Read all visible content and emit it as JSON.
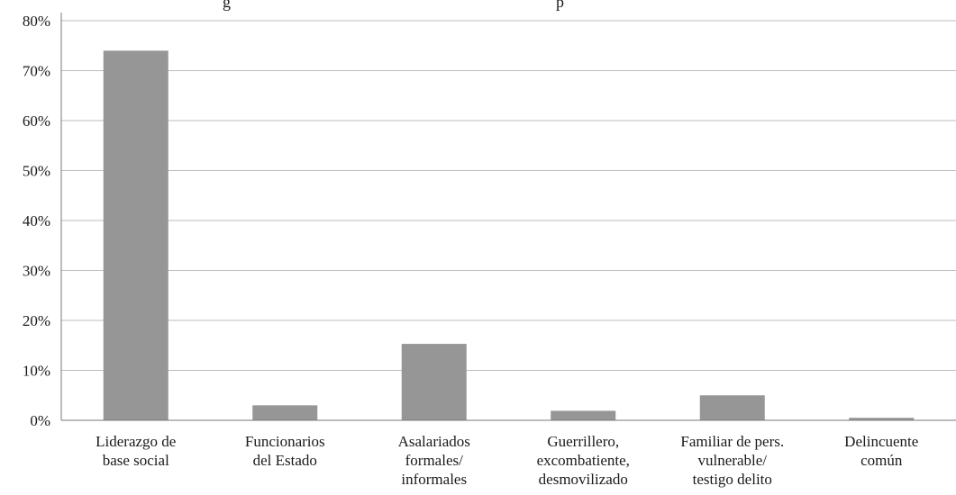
{
  "chart_data": {
    "type": "bar",
    "title_fragments": [
      "g",
      "p"
    ],
    "categories": [
      [
        "Liderazgo de",
        "base social"
      ],
      [
        "Funcionarios",
        "del Estado"
      ],
      [
        "Asalariados",
        "formales/",
        "informales"
      ],
      [
        "Guerrillero,",
        "excombatiente,",
        "desmovilizado"
      ],
      [
        "Familiar de pers.",
        "vulnerable/",
        "testigo delito"
      ],
      [
        "Delincuente",
        "común"
      ]
    ],
    "values": [
      74,
      3,
      15.3,
      1.9,
      5,
      0.5
    ],
    "ylim": [
      0,
      80
    ],
    "yticks": [
      0,
      10,
      20,
      30,
      40,
      50,
      60,
      70,
      80
    ],
    "ytick_labels": [
      "0%",
      "10%",
      "20%",
      "30%",
      "40%",
      "50%",
      "60%",
      "70%",
      "80%"
    ],
    "grid": true,
    "colors": {
      "bar": "#969696",
      "grid": "#bdbdbd",
      "axis": "#7a7a7a"
    }
  }
}
